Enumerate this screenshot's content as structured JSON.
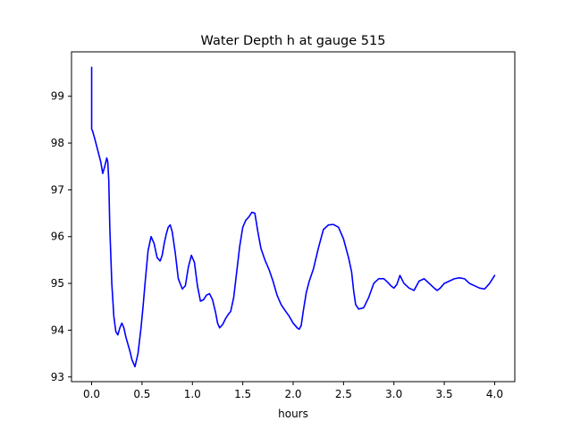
{
  "chart_data": {
    "type": "line",
    "title": "Water Depth h at gauge 515",
    "xlabel": "hours",
    "ylabel": "",
    "xlim": [
      -0.2,
      4.2
    ],
    "ylim": [
      92.9,
      99.95
    ],
    "xticks": [
      0.0,
      0.5,
      1.0,
      1.5,
      2.0,
      2.5,
      3.0,
      3.5,
      4.0
    ],
    "xtick_labels": [
      "0.0",
      "0.5",
      "1.0",
      "1.5",
      "2.0",
      "2.5",
      "3.0",
      "3.5",
      "4.0"
    ],
    "yticks": [
      93,
      94,
      95,
      96,
      97,
      98,
      99
    ],
    "ytick_labels": [
      "93",
      "94",
      "95",
      "96",
      "97",
      "98",
      "99"
    ],
    "grid": false,
    "line_color": "#0000ff",
    "series": [
      {
        "x": [
          0.0,
          0.0,
          0.0,
          0.01,
          0.03,
          0.06,
          0.09,
          0.11,
          0.13,
          0.15,
          0.16,
          0.17,
          0.18,
          0.2,
          0.22,
          0.24,
          0.26,
          0.28,
          0.3,
          0.32,
          0.34,
          0.36,
          0.38,
          0.4,
          0.43,
          0.46,
          0.49,
          0.51,
          0.53,
          0.56,
          0.59,
          0.62,
          0.65,
          0.68,
          0.7,
          0.72,
          0.74,
          0.76,
          0.78,
          0.8,
          0.83,
          0.86,
          0.9,
          0.93,
          0.96,
          0.99,
          1.02,
          1.05,
          1.08,
          1.11,
          1.14,
          1.17,
          1.2,
          1.23,
          1.25,
          1.27,
          1.3,
          1.33,
          1.36,
          1.38,
          1.41,
          1.44,
          1.47,
          1.5,
          1.53,
          1.56,
          1.59,
          1.62,
          1.65,
          1.68,
          1.72,
          1.76,
          1.8,
          1.84,
          1.88,
          1.92,
          1.96,
          2.0,
          2.04,
          2.06,
          2.08,
          2.1,
          2.13,
          2.16,
          2.2,
          2.25,
          2.3,
          2.35,
          2.4,
          2.45,
          2.5,
          2.55,
          2.58,
          2.6,
          2.62,
          2.65,
          2.7,
          2.75,
          2.8,
          2.85,
          2.9,
          2.94,
          2.97,
          3.0,
          3.03,
          3.06,
          3.1,
          3.15,
          3.2,
          3.25,
          3.3,
          3.35,
          3.4,
          3.43,
          3.46,
          3.5,
          3.55,
          3.6,
          3.65,
          3.7,
          3.75,
          3.8,
          3.85,
          3.9,
          3.95,
          4.0
        ],
        "y": [
          99.62,
          99.1,
          98.3,
          98.25,
          98.1,
          97.85,
          97.6,
          97.35,
          97.5,
          97.68,
          97.6,
          97.2,
          96.2,
          95.0,
          94.3,
          93.97,
          93.9,
          94.05,
          94.15,
          94.05,
          93.85,
          93.7,
          93.55,
          93.37,
          93.22,
          93.5,
          94.05,
          94.5,
          95.0,
          95.7,
          96.0,
          95.85,
          95.55,
          95.48,
          95.6,
          95.85,
          96.05,
          96.2,
          96.25,
          96.1,
          95.65,
          95.1,
          94.88,
          94.95,
          95.35,
          95.6,
          95.45,
          94.95,
          94.62,
          94.65,
          94.75,
          94.78,
          94.65,
          94.38,
          94.15,
          94.05,
          94.12,
          94.25,
          94.35,
          94.4,
          94.7,
          95.25,
          95.8,
          96.2,
          96.35,
          96.42,
          96.52,
          96.5,
          96.1,
          95.75,
          95.5,
          95.3,
          95.05,
          94.75,
          94.55,
          94.42,
          94.3,
          94.15,
          94.05,
          94.02,
          94.1,
          94.4,
          94.8,
          95.05,
          95.3,
          95.75,
          96.15,
          96.25,
          96.26,
          96.2,
          95.95,
          95.55,
          95.25,
          94.85,
          94.55,
          94.45,
          94.48,
          94.7,
          95.0,
          95.1,
          95.1,
          95.02,
          94.95,
          94.9,
          94.98,
          95.17,
          95.0,
          94.9,
          94.85,
          95.05,
          95.1,
          95.0,
          94.9,
          94.85,
          94.9,
          95.0,
          95.05,
          95.1,
          95.12,
          95.1,
          95.0,
          94.95,
          94.9,
          94.88,
          95.0,
          95.17
        ]
      }
    ]
  }
}
